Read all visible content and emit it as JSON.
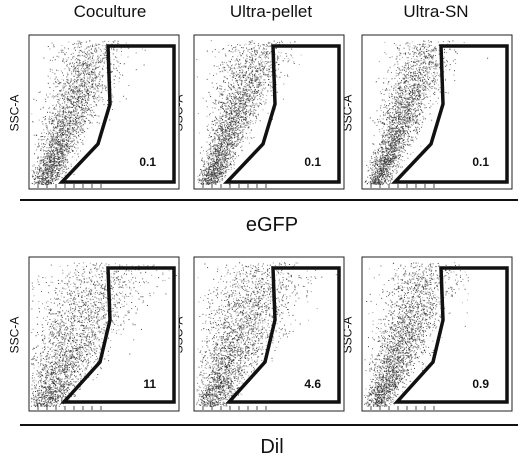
{
  "column_titles": [
    "Coculture",
    "Ultra-pellet",
    "Ultra-SN"
  ],
  "chart_data": [
    {
      "type": "scatter",
      "marker": "eGFP",
      "ylabel": "SSC-A",
      "panels": [
        {
          "column": "Coculture",
          "gate_value": "0.1"
        },
        {
          "column": "Ultra-pellet",
          "gate_value": "0.1"
        },
        {
          "column": "Ultra-SN",
          "gate_value": "0.1"
        }
      ]
    },
    {
      "type": "scatter",
      "marker": "DiI",
      "ylabel": "SSC-A",
      "panels": [
        {
          "column": "Coculture",
          "gate_value": "11"
        },
        {
          "column": "Ultra-pellet",
          "gate_value": "4.6"
        },
        {
          "column": "Ultra-SN",
          "gate_value": "0.9"
        }
      ]
    }
  ],
  "sections": {
    "top_label": "eGFP",
    "bottom_label": "Dil"
  }
}
